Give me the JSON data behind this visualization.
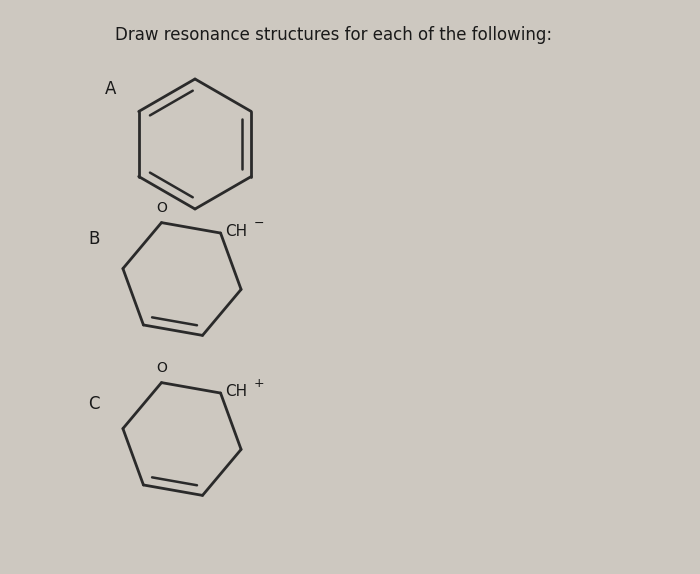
{
  "title": "Draw resonance structures for each of the following:",
  "background_color": "#cdc8c0",
  "text_color": "#1a1a1a",
  "line_color": "#2a2a2a",
  "label_A": "A",
  "label_B": "B",
  "label_C": "C",
  "title_fontsize": 12,
  "label_fontsize": 12
}
